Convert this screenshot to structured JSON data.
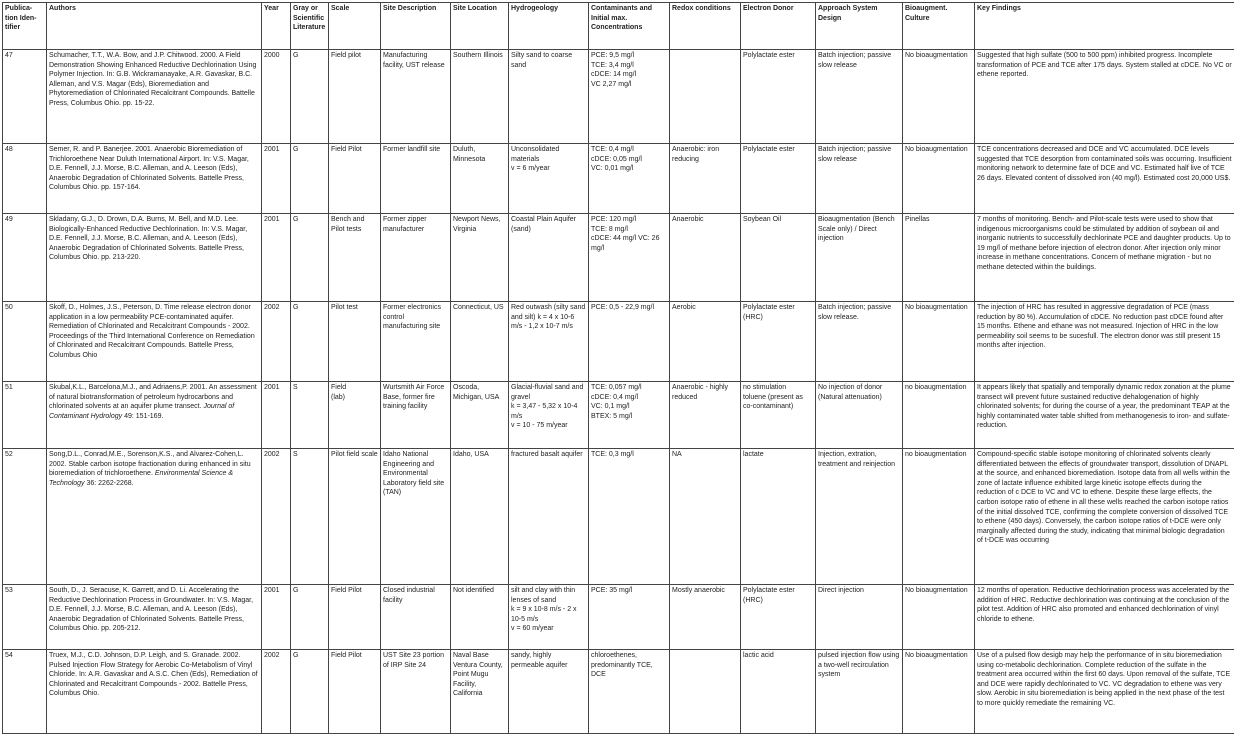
{
  "columns": [
    "Publica-\ntion Iden-\ntifier",
    "Authors",
    "Year",
    "Gray or\nScientific\nLiterature",
    "Scale",
    "Site Description",
    "Site Location",
    "Hydrogeology",
    "Contaminants and\nInitial max.\nConcentrations",
    "Redox conditions",
    "Electron Donor",
    "Approach System Design",
    "Bioaugment.\nCulture",
    "Key Findings"
  ],
  "rows": [
    {
      "id": "47",
      "authors": "Schumacher, T.T., W.A. Bow, and J.P. Chitwood. 2000. A Field Demonstration Showing Enhanced Reductive Dechlorination Using Polymer Injection.  In: G.B. Wickramanayake, A.R. Gavaskar, B.C. Alleman, and V.S. Magar (Eds), Bioremediation and Phytoremediation of Chlorinated Recalcitrant Compounds. Battelle Press, Columbus Ohio. pp. 15-22.",
      "year": "2000",
      "literature": "G",
      "scale": "Field pilot",
      "site_description": "Manufacturing facility, UST release",
      "site_location": "Southern Illinois",
      "hydrogeology": "Silty sand to coarse sand",
      "contaminants": "PCE: 9,5 mg/l\nTCE: 3,4 mg/l\ncDCE: 14 mg/l\nVC 2,27 mg/l",
      "redox": "",
      "electron_donor": "Polylactate ester",
      "approach": "Batch injection; passive slow release",
      "bioaugment": "No bioaugmentation",
      "key_findings": "Suggested that high sulfate (500 to 500 ppm) inhibited progress. Incomplete transformation of PCE and TCE after 175 days. System stalled at cDCE. No VC or ethene reported."
    },
    {
      "id": "48",
      "authors": "Semer, R. and P. Banerjee. 2001. Anaerobic Bioremediation of Trichloroethene Near Duluth International Airport. In: V.S. Magar, D.E. Fennell, J.J. Morse, B.C. Alleman, and A. Leeson (Eds), Anaerobic Degradation of Chlorinated Solvents. Battelle Press, Columbus Ohio. pp. 157-164.",
      "year": "2001",
      "literature": "G",
      "scale": "Field Pilot",
      "site_description": "Former landfill site",
      "site_location": "Duluth, Minnesota",
      "hydrogeology": "Unconsolidated materials\nv = 6 m/year",
      "contaminants": "TCE: 0,4 mg/l\ncDCE: 0,05 mg/l\nVC: 0,01 mg/l",
      "redox": "Anaerobic: iron reducing",
      "electron_donor": "Polylactate ester",
      "approach": "Batch injection; passive slow release",
      "bioaugment": "No bioaugmentation",
      "key_findings": "TCE concentrations decreased and DCE and VC accumulated.  DCE levels suggested that TCE desorption from contaminated soils was occurring. Insufficient monitoring network to determine fate of DCE and VC. Estimated half live of TCE 26 days. Elevated content of dissolved iron (40 mg/l). Estimated cost 20,000 US$."
    },
    {
      "id": "49",
      "authors": "Skladany, G.J., D. Drown, D.A. Burns, M. Bell, and M.D. Lee. Biologically-Enhanced Reductive Dechlorination. In: V.S. Magar, D.E. Fennell, J.J. Morse, B.C. Alleman, and A. Leeson (Eds), Anaerobic Degradation of Chlorinated Solvents. Battelle Press, Columbus Ohio. pp. 213-220.",
      "year": "2001",
      "literature": "G",
      "scale": "Bench and Pilot tests",
      "site_description": "Former zipper manufacturer",
      "site_location": "Newport News, Virginia",
      "hydrogeology": "Coastal Plain Aquifer (sand)",
      "contaminants": "PCE: 120 mg/l\nTCE: 8 mg/l\ncDCE: 44 mg/l         VC: 26 mg/l",
      "redox": "Anaerobic",
      "electron_donor": "Soybean Oil",
      "approach": "Bioaugmentation (Bench Scale only) / Direct injection",
      "bioaugment": "Pinellas",
      "key_findings": "7 months of monitoring. Bench- and Pilot-scale tests were used to show that indigenous microorganisms could be stimulated by addition of soybean oil and inorganic nutrients to successfully dechlorinate PCE and daughter products. Up to 19 mg/l of methane before injection of electron donor. After injection only minor increase in methane concentrations. Concern of methane migration - but no methane detected within the buildings."
    },
    {
      "id": "50",
      "authors": "Skoff, D., Holmes, J.S., Peterson, D. Time release electron donor application in a low permeability PCE-contaminated aquifer. Remediation of Chlorinated and Recalcitrant Compounds - 2002. Proceedings of the Third International Conference on Remediation of Chlorinated and Recalcitrant Compounds. Battelle Press, Columbus Ohio",
      "year": "2002",
      "literature": "G",
      "scale": "Pilot test",
      "site_description": "Former electronics control manufacturing site",
      "site_location": "Connecticut, US",
      "hydrogeology": "Red outwash (silty sand and silt)              k = 4 x 10-6 m/s - 1,2 x 10-7 m/s",
      "contaminants": "PCE: 0,5 - 22,9 mg/l",
      "redox": "Aerobic",
      "electron_donor": "Polylactate ester (HRC)",
      "approach": "Batch injection; passive slow release.",
      "bioaugment": "No bioaugmentation",
      "key_findings": "The injection of HRC has resulted in aggressive degradation of PCE (mass reduction by 80 %). Accumulation of cDCE. No reduction past cDCE found after 15 months. Ethene and ethane was not measured. Injection of HRC in the low permeability soil seems to be sucesfull. The electron donor was still present 15 months after injection."
    },
    {
      "id": "51",
      "authors_pre": "Skubal,K.L., Barcelona,M.J., and Adriaens,P. 2001. An assessment of natural biotransformation of petroleum hydrocarbons and chlorinated solvents at an aquifer plume transect. ",
      "authors_journal": "Journal of Contaminant Hydrology",
      "authors_post": "  49: 151-169.",
      "year": "2001",
      "literature": "S",
      "scale": "Field\n(lab)",
      "site_description": "Wurtsmith Air Force Base, former fire training facility",
      "site_location": "Oscoda, Michigan, USA",
      "hydrogeology": "Glacial-fluvial sand and gravel\nk = 3,47 - 5,32 x 10-4 m/s\nv = 10 - 75 m/year",
      "contaminants": "TCE: 0,057 mg/l\ncDCE: 0,4 mg/l\nVC: 0,1 mg/l\nBTEX: 5 mg/l",
      "redox": "Anaerobic - highly reduced",
      "electron_donor": "no stimulation\ntoluene (present as co-contaminant)",
      "approach": "No injection of donor (Natural attenuation)",
      "bioaugment": "no bioaugmentation",
      "key_findings": "It appears likely that spatially and temporally dynamic redox zonation at the plume transect will prevent future sustained reductive dehalogenation of highly chlorinated solvents; for during the course of a year, the predominant TEAP at the highly contaminated water table shifted from methanogenesis to iron- and sulfate-reduction."
    },
    {
      "id": "52",
      "authors_pre": "Song,D.L., Conrad,M.E., Sorenson,K.S., and Alvarez-Cohen,L. 2002. Stable carbon isotope fractionation during enhanced in situ bioremediation of trichloroethene. ",
      "authors_journal": "Environmental Science & Technology",
      "authors_post": " 36: 2262-2268.",
      "year": "2002",
      "literature": "S",
      "scale": "Pilot field scale",
      "site_description": "Idaho National Engineering and Environmental Laboratory field site (TAN)",
      "site_location": "Idaho, USA",
      "hydrogeology": "fractured basalt aquifer",
      "contaminants": "TCE: 0,3 mg/l",
      "redox": "NA",
      "electron_donor": "lactate",
      "approach": "Injection, extration, treatment and reinjection",
      "bioaugment": "no bioaugmentation",
      "key_findings": "Compound-specific stable isotope monitoring of chlorinated solvents clearly differentiated between the effects of groundwater transport, dissolution of DNAPL at the source, and enhanced bioremediation. Isotope data from all wells within the zone of lactate influence exhibited large kinetic isotope effects during the reduction of c DCE to VC and VC to ethene. Despite these large effects, the carbon isotope ratio of ethene in all these wells reached the carbon isotope ratios of the initial dissolved TCE, confirming the complete conversion of dissolved TCE to ethene (450 days). Conversely, the carbon isotope ratios of t-DCE were only marginally affected during the study, indicating that minimal biologic degradation of t-DCE was occurring"
    },
    {
      "id": "53",
      "authors": "South, D., J. Seracuse, K. Garrett, and D. Li. Accelerating the Reductive Dechlorination Process in Groundwater. In: V.S. Magar, D.E. Fennell, J.J. Morse, B.C. Alleman, and A. Leeson (Eds), Anaerobic Degradation of Chlorinated Solvents. Battelle Press, Columbus Ohio. pp. 205-212.",
      "year": "2001",
      "literature": "G",
      "scale": "Field Pilot",
      "site_description": "Closed industrial facility",
      "site_location": "Not identified",
      "hydrogeology": "silt and clay with thin lenses of sand\nk = 9 x 10-8 m/s - 2 x 10-5 m/s\nv = 60 m/year",
      "contaminants": "PCE: 35 mg/l",
      "redox": "Mostly anaerobic",
      "electron_donor": "Polylactate ester (HRC)",
      "approach": "Direct injection",
      "bioaugment": "No bioaugmentation",
      "key_findings": "12 months of operation. Reductive dechlorination process was accelerated by the addition of HRC.  Reductive dechlorination was continuing at the conclusion of the pilot test.  Addition of HRC also promoted and enhanced dechlorination of vinyl chloride to ethene."
    },
    {
      "id": "54",
      "authors": "Truex, M.J., C.D. Johnson, D.P. Leigh, and S. Granade. 2002. Pulsed Injection Flow Strategy for Aerobic Co-Metabolism of Vinyl Chloride. In: A.R. Gavaskar and A.S.C. Chen (Eds), Remediation of Chlorinated and Recalcitrant Compounds - 2002. Battelle Press, Columbus Ohio.",
      "year": "2002",
      "literature": "G",
      "scale": "Field Pilot",
      "site_description": "UST Site 23 portion of IRP Site 24",
      "site_location": "Naval Base Ventura County, Point Mugu Facility, California",
      "hydrogeology": "sandy, highly permeable aquifer",
      "contaminants": "chloroethenes, predominantly TCE, DCE",
      "redox": "",
      "electron_donor": "lactic acid",
      "approach": "pulsed injection flow using a two-well recirculation system",
      "bioaugment": "No bioaugmentation",
      "key_findings": "Use of a pulsed flow desigb may help the performance of in situ bioremediation using co-metabolic dechlorination.  Complete reduction of the sulfate in the treatment area occurred within the first 60 days.  Upon removal of the sulfate, TCE and DCE were rapidly dechlorinated to VC.  VC degradation to ethene was very slow.  Aerobic in situ bioremediation is being applied in the next phase of the test to more quickly remediate the remaining VC."
    }
  ]
}
